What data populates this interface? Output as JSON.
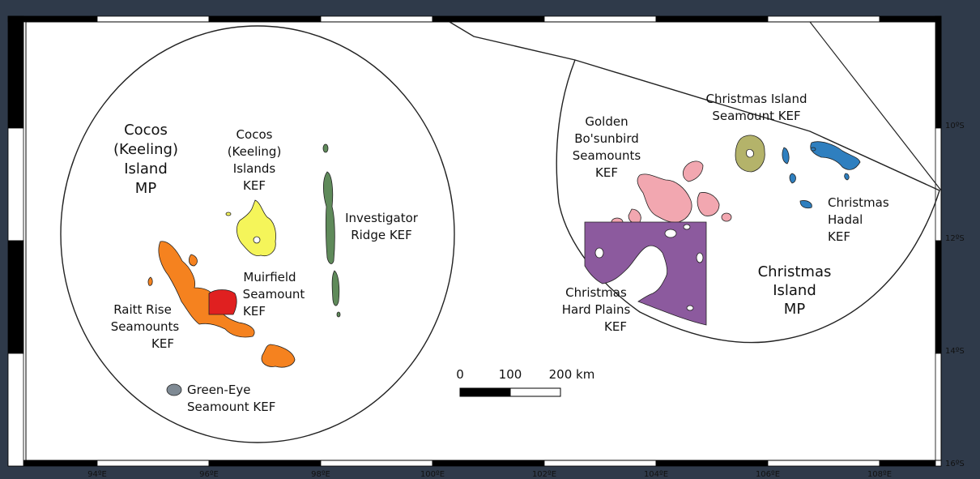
{
  "map": {
    "regions": {
      "cocos_mp": [
        "Cocos",
        "(Keeling)",
        "Island",
        "MP"
      ],
      "christmas_mp": [
        "Christmas",
        "Island",
        "MP"
      ]
    },
    "features": {
      "cocos_islands_kef": [
        "Cocos",
        "(Keeling)",
        "Islands",
        "KEF"
      ],
      "investigator_ridge_kef": [
        "Investigator",
        "Ridge KEF"
      ],
      "muirfield_seamount_kef": [
        "Muirfield",
        "Seamount",
        "KEF"
      ],
      "raitt_rise_seamounts_kef": [
        "Raitt Rise",
        "Seamounts",
        "KEF"
      ],
      "green_eye_seamount_kef": [
        "Green-Eye",
        "Seamount KEF"
      ],
      "golden_bosunbird_seamounts_kef": [
        "Golden",
        "Bo'sunbird",
        "Seamounts",
        "KEF"
      ],
      "christmas_island_seamount_kef": [
        "Christmas Island",
        "Seamount KEF"
      ],
      "christmas_hadal_kef": [
        "Christmas",
        "Hadal",
        "KEF"
      ],
      "christmas_hard_plains_kef": [
        "Christmas",
        "Hard Plains",
        "KEF"
      ]
    },
    "colors": {
      "frame": "#2f3a4a",
      "paper": "#ffffff",
      "investigator": "#5f8a5a",
      "cocos_kef": "#f5f55a",
      "raitt": "#f5821f",
      "muirfield": "#e02020",
      "green_eye": "#7f8a94",
      "golden": "#f2a7b0",
      "ci_seamount": "#b4b36a",
      "hadal": "#2f7fbf",
      "hard_plains": "#8c5a9e"
    },
    "scale_bar": {
      "labels": [
        "0",
        "100",
        "200 km"
      ]
    },
    "x_ticks": [
      "94ºE",
      "96ºE",
      "98ºE",
      "100ºE",
      "102ºE",
      "104ºE",
      "106ºE",
      "108ºE"
    ],
    "y_ticks": [
      "10ºS",
      "12ºS",
      "14ºS",
      "16ºS"
    ]
  }
}
